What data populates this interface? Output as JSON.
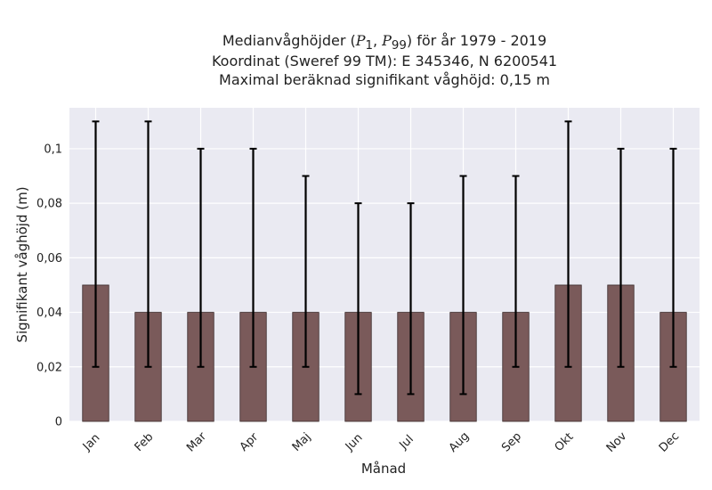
{
  "chart_data": {
    "type": "bar",
    "title": {
      "line1_prefix": "Medianvåghöjder (",
      "p1_symbol": "P",
      "p1_sub": "1",
      "separator": ", ",
      "p99_symbol": "P",
      "p99_sub": "99",
      "line1_suffix": ") för år 1979 - 2019",
      "line2": "Koordinat (Sweref 99 TM): E 345346, N 6200541",
      "line3": "Maximal beräknad signifikant våghöjd: 0,15 m"
    },
    "xlabel": "Månad",
    "ylabel": "Signifikant våghöjd (m)",
    "ylim": [
      0,
      0.115
    ],
    "yticks": [
      0,
      0.02,
      0.04,
      0.06,
      0.08,
      0.1
    ],
    "ytick_labels": [
      "0",
      "0,02",
      "0,04",
      "0,06",
      "0,08",
      "0,1"
    ],
    "categories": [
      "Jan",
      "Feb",
      "Mar",
      "Apr",
      "Maj",
      "Jun",
      "Jul",
      "Aug",
      "Sep",
      "Okt",
      "Nov",
      "Dec"
    ],
    "values": [
      0.05,
      0.04,
      0.04,
      0.04,
      0.04,
      0.04,
      0.04,
      0.04,
      0.04,
      0.05,
      0.05,
      0.04
    ],
    "error_low": [
      0.02,
      0.02,
      0.02,
      0.02,
      0.02,
      0.01,
      0.01,
      0.01,
      0.02,
      0.02,
      0.02,
      0.02
    ],
    "error_high": [
      0.11,
      0.11,
      0.1,
      0.1,
      0.09,
      0.08,
      0.08,
      0.09,
      0.09,
      0.11,
      0.1,
      0.1
    ],
    "grid": true,
    "legend": "none",
    "colors": {
      "bar": "#7a5a5a",
      "bar_edge": "#3a2a2a",
      "error": "#000000",
      "background": "#eaeaf2",
      "grid": "#ffffff"
    }
  }
}
